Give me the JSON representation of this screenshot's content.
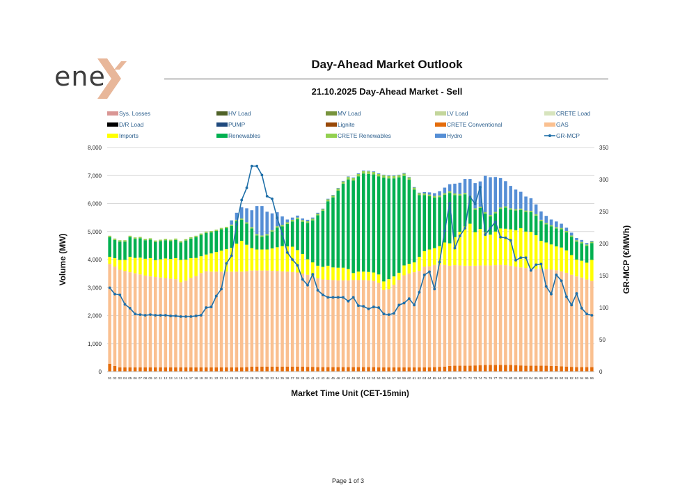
{
  "header": {
    "logo_text": "ene",
    "title": "Day-Ahead Market Outlook",
    "subtitle": "21.10.2025  Day-Ahead Market - Sell"
  },
  "footer": {
    "page_label": "Page 1 of 3"
  },
  "chart_data": {
    "type": "bar",
    "stacked": true,
    "xlabel": "Market Time Unit (CET-15min)",
    "ylabel": "Volume (MW)",
    "y2label": "GR-MCP (€/MWh)",
    "ylim": [
      0,
      8000
    ],
    "y2lim": [
      0,
      350
    ],
    "yticks": [
      "0",
      "1,000",
      "2,000",
      "3,000",
      "4,000",
      "5,000",
      "6,000",
      "7,000",
      "8,000"
    ],
    "y2ticks": [
      "0",
      "50",
      "100",
      "150",
      "200",
      "250",
      "300",
      "350"
    ],
    "categories": [
      "01",
      "02",
      "03",
      "04",
      "05",
      "06",
      "07",
      "08",
      "09",
      "10",
      "11",
      "12",
      "13",
      "14",
      "15",
      "16",
      "17",
      "18",
      "19",
      "20",
      "21",
      "22",
      "23",
      "24",
      "25",
      "26",
      "27",
      "28",
      "29",
      "30",
      "31",
      "32",
      "33",
      "34",
      "35",
      "36",
      "37",
      "38",
      "39",
      "40",
      "41",
      "42",
      "43",
      "44",
      "45",
      "46",
      "47",
      "48",
      "49",
      "50",
      "51",
      "52",
      "53",
      "54",
      "55",
      "56",
      "57",
      "58",
      "59",
      "60",
      "61",
      "62",
      "63",
      "64",
      "65",
      "66",
      "67",
      "68",
      "69",
      "70",
      "71",
      "72",
      "73",
      "74",
      "75",
      "76",
      "77",
      "78",
      "79",
      "80",
      "81",
      "82",
      "83",
      "84",
      "85",
      "86",
      "87",
      "88",
      "89",
      "90",
      "91",
      "92",
      "93",
      "94",
      "95",
      "96"
    ],
    "legend": [
      {
        "name": "Sys. Losses",
        "color": "#d99694",
        "type": "bar"
      },
      {
        "name": "HV Load",
        "color": "#4f6228",
        "type": "bar"
      },
      {
        "name": "MV Load",
        "color": "#77933c",
        "type": "bar"
      },
      {
        "name": "LV Load",
        "color": "#c3d69b",
        "type": "bar"
      },
      {
        "name": "CRETE Load",
        "color": "#d7e4bd",
        "type": "bar"
      },
      {
        "name": "D/R Load",
        "color": "#000000",
        "type": "bar"
      },
      {
        "name": "PUMP",
        "color": "#1f497d",
        "type": "bar"
      },
      {
        "name": "Lignite",
        "color": "#984807",
        "type": "bar"
      },
      {
        "name": "CRETE Conventional",
        "color": "#e46c0a",
        "type": "bar"
      },
      {
        "name": "GAS",
        "color": "#fac090",
        "type": "bar"
      },
      {
        "name": "Imports",
        "color": "#ffff00",
        "type": "bar"
      },
      {
        "name": "Renewables",
        "color": "#00b050",
        "type": "bar"
      },
      {
        "name": "CRETE Renewables",
        "color": "#92d050",
        "type": "bar"
      },
      {
        "name": "Hydro",
        "color": "#558ed5",
        "type": "bar"
      },
      {
        "name": "GR-MCP",
        "color": "#1f6fa8",
        "type": "line"
      }
    ],
    "series": [
      {
        "name": "CRETE Conventional",
        "color": "#e46c0a",
        "values": [
          280,
          200,
          150,
          150,
          150,
          150,
          150,
          150,
          150,
          150,
          150,
          150,
          150,
          150,
          150,
          150,
          150,
          150,
          150,
          150,
          150,
          150,
          150,
          150,
          150,
          150,
          150,
          160,
          180,
          180,
          180,
          180,
          180,
          180,
          180,
          180,
          180,
          180,
          180,
          170,
          170,
          160,
          160,
          160,
          160,
          160,
          160,
          160,
          160,
          160,
          160,
          160,
          160,
          150,
          150,
          150,
          150,
          150,
          150,
          150,
          150,
          150,
          150,
          150,
          160,
          170,
          180,
          200,
          210,
          210,
          210,
          210,
          220,
          230,
          240,
          240,
          240,
          240,
          240,
          240,
          230,
          220,
          210,
          210,
          210,
          210,
          210,
          200,
          200,
          190,
          180,
          170,
          160,
          160,
          160,
          160
        ]
      },
      {
        "name": "GAS",
        "color": "#fac090",
        "values": [
          3570,
          3550,
          3490,
          3440,
          3400,
          3360,
          3320,
          3280,
          3250,
          3230,
          3210,
          3190,
          3170,
          3150,
          3040,
          3100,
          3200,
          3260,
          3370,
          3430,
          3420,
          3420,
          3420,
          3420,
          3420,
          3420,
          3420,
          3420,
          3430,
          3430,
          3430,
          3430,
          3420,
          3410,
          3400,
          3390,
          3380,
          3360,
          3320,
          3290,
          3230,
          3170,
          3130,
          3120,
          3110,
          3100,
          3100,
          3100,
          3110,
          3110,
          3110,
          3100,
          3080,
          3020,
          2770,
          2800,
          2950,
          3130,
          3290,
          3350,
          3400,
          3450,
          3600,
          3610,
          3650,
          3660,
          3630,
          3580,
          3590,
          3580,
          3570,
          3570,
          3560,
          3560,
          3550,
          3550,
          3560,
          3570,
          3560,
          3540,
          3520,
          3500,
          3490,
          3480,
          3460,
          3460,
          3450,
          3440,
          3420,
          3390,
          3350,
          3290,
          3240,
          3200,
          3130,
          3080
        ]
      },
      {
        "name": "Imports",
        "color": "#ffff00",
        "values": [
          250,
          300,
          350,
          400,
          550,
          550,
          600,
          600,
          650,
          600,
          650,
          700,
          700,
          750,
          800,
          750,
          700,
          650,
          600,
          600,
          650,
          700,
          750,
          800,
          850,
          1000,
          1100,
          950,
          800,
          750,
          750,
          750,
          800,
          850,
          900,
          900,
          900,
          800,
          700,
          550,
          500,
          450,
          450,
          500,
          450,
          450,
          450,
          400,
          250,
          300,
          300,
          300,
          300,
          300,
          300,
          350,
          300,
          250,
          350,
          350,
          350,
          500,
          550,
          600,
          600,
          650,
          800,
          800,
          1000,
          1200,
          1400,
          1500,
          1200,
          1300,
          1200,
          1100,
          1200,
          1300,
          1300,
          1300,
          1300,
          1400,
          1300,
          1300,
          1200,
          1000,
          950,
          900,
          850,
          850,
          800,
          700,
          600,
          600,
          600,
          750
        ]
      },
      {
        "name": "Renewables",
        "color": "#00b050",
        "values": [
          700,
          650,
          650,
          650,
          700,
          680,
          690,
          660,
          660,
          650,
          650,
          650,
          640,
          650,
          620,
          680,
          700,
          740,
          760,
          770,
          750,
          750,
          760,
          750,
          780,
          800,
          750,
          750,
          700,
          500,
          450,
          500,
          600,
          700,
          700,
          800,
          900,
          1100,
          1150,
          1300,
          1500,
          1800,
          2000,
          2300,
          2500,
          2750,
          3000,
          3200,
          3300,
          3400,
          3500,
          3500,
          3500,
          3500,
          3700,
          3600,
          3500,
          3400,
          3200,
          3000,
          2600,
          2200,
          2000,
          1900,
          1800,
          1750,
          1700,
          1800,
          1500,
          1300,
          1150,
          950,
          800,
          750,
          650,
          650,
          650,
          700,
          750,
          700,
          700,
          650,
          700,
          700,
          700,
          700,
          650,
          640,
          640,
          650,
          640,
          650,
          640,
          620,
          600,
          600
        ]
      },
      {
        "name": "CRETE Renewables",
        "color": "#92d050",
        "values": [
          50,
          50,
          50,
          50,
          50,
          50,
          50,
          50,
          50,
          50,
          50,
          50,
          50,
          50,
          50,
          50,
          50,
          50,
          50,
          50,
          50,
          50,
          50,
          50,
          50,
          50,
          50,
          50,
          50,
          50,
          50,
          50,
          50,
          50,
          60,
          60,
          60,
          60,
          60,
          60,
          60,
          60,
          60,
          70,
          70,
          80,
          80,
          90,
          90,
          90,
          90,
          90,
          90,
          90,
          90,
          90,
          90,
          80,
          80,
          80,
          70,
          70,
          60,
          60,
          60,
          60,
          60,
          60,
          60,
          50,
          50,
          50,
          50,
          50,
          50,
          50,
          50,
          50,
          50,
          50,
          50,
          50,
          50,
          50,
          50,
          50,
          50,
          50,
          50,
          50,
          50,
          50,
          50,
          50,
          50,
          50
        ]
      },
      {
        "name": "Hydro",
        "color": "#558ed5",
        "values": [
          0,
          0,
          0,
          0,
          0,
          0,
          0,
          0,
          0,
          0,
          0,
          0,
          0,
          0,
          0,
          0,
          0,
          0,
          0,
          0,
          0,
          0,
          0,
          0,
          150,
          250,
          400,
          500,
          600,
          1000,
          1050,
          800,
          600,
          500,
          300,
          100,
          80,
          70,
          60,
          50,
          40,
          30,
          20,
          20,
          20,
          20,
          20,
          20,
          20,
          20,
          20,
          20,
          20,
          20,
          20,
          20,
          20,
          20,
          20,
          20,
          20,
          20,
          50,
          80,
          100,
          150,
          200,
          250,
          350,
          400,
          500,
          600,
          900,
          900,
          1300,
          1350,
          1250,
          1050,
          900,
          800,
          700,
          600,
          500,
          450,
          350,
          300,
          250,
          200,
          200,
          150,
          120,
          100,
          80,
          70,
          50,
          30
        ]
      }
    ],
    "line": {
      "name": "GR-MCP",
      "color": "#1f6fa8",
      "values": [
        131,
        121,
        120,
        105,
        99,
        90,
        89,
        88,
        89,
        88,
        88,
        88,
        87,
        87,
        86,
        86,
        86,
        87,
        88,
        100,
        101,
        118,
        129,
        169,
        181,
        230,
        268,
        287,
        321,
        321,
        307,
        274,
        270,
        240,
        215,
        186,
        175,
        166,
        144,
        135,
        152,
        127,
        120,
        116,
        116,
        116,
        116,
        110,
        116,
        103,
        102,
        98,
        101,
        100,
        90,
        89,
        91,
        104,
        107,
        114,
        104,
        124,
        151,
        156,
        129,
        171,
        220,
        263,
        193,
        212,
        224,
        273,
        262,
        288,
        214,
        224,
        234,
        210,
        209,
        205,
        174,
        178,
        178,
        158,
        167,
        168,
        133,
        121,
        151,
        142,
        117,
        104,
        122,
        99,
        90,
        88
      ]
    }
  }
}
